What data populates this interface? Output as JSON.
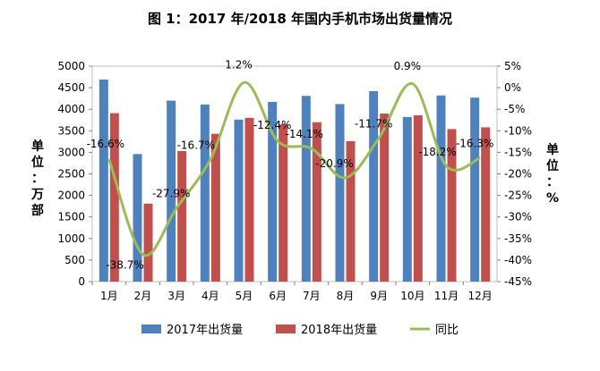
{
  "chart_data": {
    "type": "bar",
    "title": "图 1：2017 年/2018 年国内手机市场出货量情况",
    "categories": [
      "1月",
      "2月",
      "3月",
      "4月",
      "5月",
      "6月",
      "7月",
      "8月",
      "9月",
      "10月",
      "11月",
      "12月"
    ],
    "series": [
      {
        "name": "2017年出货量",
        "type": "bar",
        "axis": "left",
        "color": "#4F81BD",
        "values": [
          4690,
          2960,
          4200,
          4110,
          3760,
          4170,
          4310,
          4120,
          4420,
          3820,
          4320,
          4270
        ]
      },
      {
        "name": "2018年出货量",
        "type": "bar",
        "axis": "left",
        "color": "#C0504D",
        "values": [
          3910,
          1810,
          3030,
          3430,
          3800,
          3650,
          3700,
          3260,
          3900,
          3860,
          3540,
          3580
        ]
      },
      {
        "name": "同比",
        "type": "line",
        "axis": "right",
        "color": "#9BBB59",
        "values": [
          -16.6,
          -38.7,
          -27.9,
          -16.7,
          1.2,
          -12.4,
          -14.1,
          -20.9,
          -11.7,
          0.9,
          -18.2,
          -16.3
        ],
        "labels": [
          "-16.6%",
          "-38.7%",
          "-27.9%",
          "-16.7%",
          "1.2%",
          "-12.4%",
          "-14.1%",
          "-20.9%",
          "-11.7%",
          "0.9%",
          "-18.2%",
          "-16.3%"
        ]
      }
    ],
    "y_left": {
      "min": 0,
      "max": 5000,
      "step": 500,
      "ticks": [
        "0",
        "500",
        "1000",
        "1500",
        "2000",
        "2500",
        "3000",
        "3500",
        "4000",
        "4500",
        "5000"
      ]
    },
    "y_right": {
      "min": -45,
      "max": 5,
      "step": 5,
      "ticks": [
        "-45%",
        "-40%",
        "-35%",
        "-30%",
        "-25%",
        "-20%",
        "-15%",
        "-10%",
        "-5%",
        "0%",
        "5%"
      ]
    },
    "ylabel_left": [
      "单",
      "位",
      "：",
      "万",
      "部"
    ],
    "ylabel_right": [
      "单",
      "位",
      "：",
      "%"
    ],
    "grid": false,
    "legend": "bottom"
  }
}
